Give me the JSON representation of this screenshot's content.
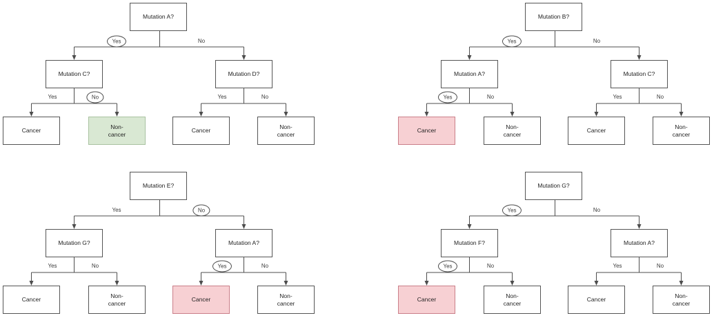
{
  "colors": {
    "line": "#4d4d4d",
    "box_border": "#545454",
    "text": "#1f1f1f",
    "green_fill": "#d9e8d3",
    "green_border": "#a9c2a1",
    "red_fill": "#f7d0d3",
    "red_border": "#ca7f89"
  },
  "trees": [
    {
      "name": "top-left",
      "root": "Mutation A?",
      "left_child": "Mutation C?",
      "right_child": "Mutation D?",
      "edges": {
        "root_yes": {
          "label": "Yes",
          "circled": true
        },
        "root_no": {
          "label": "No",
          "circled": false
        },
        "left_yes": {
          "label": "Yes",
          "circled": false
        },
        "left_no": {
          "label": "No",
          "circled": true
        },
        "right_yes": {
          "label": "Yes",
          "circled": false
        },
        "right_no": {
          "label": "No",
          "circled": false
        }
      },
      "leaves": [
        {
          "label": "Cancer",
          "highlight": ""
        },
        {
          "label": "Non-cancer",
          "highlight": "green"
        },
        {
          "label": "Cancer",
          "highlight": ""
        },
        {
          "label": "Non-cancer",
          "highlight": ""
        }
      ]
    },
    {
      "name": "top-right",
      "root": "Mutation B?",
      "left_child": "Mutation A?",
      "right_child": "Mutation C?",
      "edges": {
        "root_yes": {
          "label": "Yes",
          "circled": true
        },
        "root_no": {
          "label": "No",
          "circled": false
        },
        "left_yes": {
          "label": "Yes",
          "circled": true
        },
        "left_no": {
          "label": "No",
          "circled": false
        },
        "right_yes": {
          "label": "Yes",
          "circled": false
        },
        "right_no": {
          "label": "No",
          "circled": false
        }
      },
      "leaves": [
        {
          "label": "Cancer",
          "highlight": "red"
        },
        {
          "label": "Non-cancer",
          "highlight": ""
        },
        {
          "label": "Cancer",
          "highlight": ""
        },
        {
          "label": "Non-cancer",
          "highlight": ""
        }
      ]
    },
    {
      "name": "bottom-left",
      "root": "Mutation E?",
      "left_child": "Mutation G?",
      "right_child": "Mutation A?",
      "edges": {
        "root_yes": {
          "label": "Yes",
          "circled": false
        },
        "root_no": {
          "label": "No",
          "circled": true
        },
        "left_yes": {
          "label": "Yes",
          "circled": false
        },
        "left_no": {
          "label": "No",
          "circled": false
        },
        "right_yes": {
          "label": "Yes",
          "circled": true
        },
        "right_no": {
          "label": "No",
          "circled": false
        }
      },
      "leaves": [
        {
          "label": "Cancer",
          "highlight": ""
        },
        {
          "label": "Non-cancer",
          "highlight": ""
        },
        {
          "label": "Cancer",
          "highlight": "red"
        },
        {
          "label": "Non-cancer",
          "highlight": ""
        }
      ]
    },
    {
      "name": "bottom-right",
      "root": "Mutation G?",
      "left_child": "Mutation F?",
      "right_child": "Mutation A?",
      "edges": {
        "root_yes": {
          "label": "Yes",
          "circled": true
        },
        "root_no": {
          "label": "No",
          "circled": false
        },
        "left_yes": {
          "label": "Yes",
          "circled": true
        },
        "left_no": {
          "label": "No",
          "circled": false
        },
        "right_yes": {
          "label": "Yes",
          "circled": false
        },
        "right_no": {
          "label": "No",
          "circled": false
        }
      },
      "leaves": [
        {
          "label": "Cancer",
          "highlight": "red"
        },
        {
          "label": "Non-cancer",
          "highlight": ""
        },
        {
          "label": "Cancer",
          "highlight": ""
        },
        {
          "label": "Non-cancer",
          "highlight": ""
        }
      ]
    }
  ]
}
